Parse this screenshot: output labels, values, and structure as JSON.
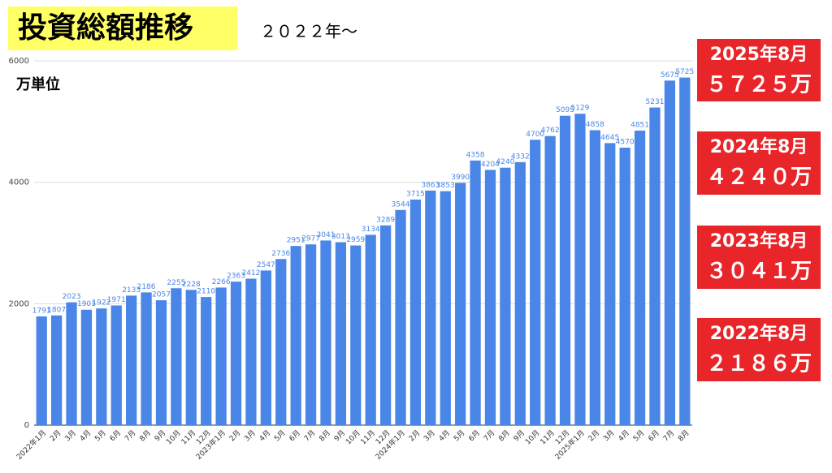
{
  "chart_data": {
    "type": "bar",
    "title": "投資総額推移",
    "subtitle": "２０２２年〜",
    "y_label": "万単位",
    "categories": [
      "2022年1月",
      "2月",
      "3月",
      "4月",
      "5月",
      "6月",
      "7月",
      "8月",
      "9月",
      "10月",
      "11月",
      "12月",
      "2023年1月",
      "2月",
      "3月",
      "4月",
      "5月",
      "6月",
      "7月",
      "8月",
      "9月",
      "10月",
      "11月",
      "12月",
      "2024年1月",
      "2月",
      "3月",
      "4月",
      "5月",
      "6月",
      "7月",
      "8月",
      "9月",
      "10月",
      "11月",
      "12月",
      "2025年1月",
      "2月",
      "3月",
      "4月",
      "5月",
      "6月",
      "7月",
      "8月"
    ],
    "values": [
      1791,
      1807,
      2023,
      1901,
      1922,
      1971,
      2133,
      2186,
      2057,
      2255,
      2228,
      2110,
      2266,
      2363,
      2412,
      2547,
      2736,
      2951,
      2977,
      3041,
      3013,
      2959,
      3134,
      3289,
      3544,
      3715,
      3863,
      3853,
      3990,
      4358,
      4204,
      4240,
      4332,
      4700,
      4762,
      5095,
      5129,
      4858,
      4645,
      4570,
      4851,
      5231,
      5675,
      5725
    ],
    "color": "#4a86e8",
    "ylim": [
      0,
      6000
    ],
    "yticks": [
      0,
      2000,
      4000,
      6000
    ],
    "grid": true,
    "annotations": [
      [
        "2025年8月",
        "５７２５万"
      ],
      [
        "2024年8月",
        "４２４０万"
      ],
      [
        "2023年8月",
        "３０４１万"
      ],
      [
        "2022年8月",
        "２１８６万"
      ]
    ]
  }
}
